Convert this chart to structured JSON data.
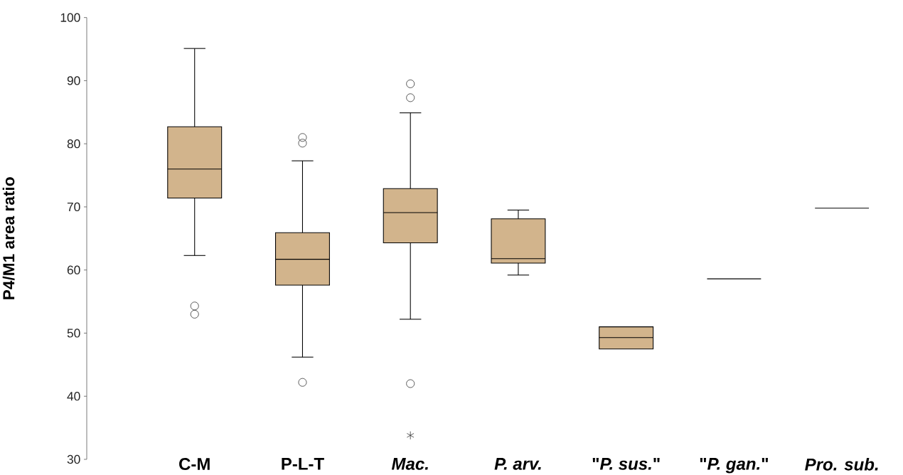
{
  "chart_data": {
    "type": "box",
    "ylabel": "P4/M1 area ratio",
    "categories": [
      "C-M",
      "P-L-T",
      "*Mac.*",
      "*P. arv.*",
      "\"*P. sus.*\"",
      "\"*P. gan.*\"",
      "*Pro. sub.*"
    ],
    "boxes": [
      {
        "low": 62.3,
        "q1": 71.4,
        "median": 76.0,
        "q3": 82.7,
        "high": 95.1,
        "outliers": [
          54.3,
          53.0
        ]
      },
      {
        "low": 46.2,
        "q1": 57.6,
        "median": 61.7,
        "q3": 65.9,
        "high": 77.3,
        "outliers": [
          81.0,
          80.1,
          42.2
        ]
      },
      {
        "low": 52.2,
        "q1": 64.3,
        "median": 69.1,
        "q3": 72.9,
        "high": 84.9,
        "outliers": [
          89.5,
          87.3,
          42.0,
          33.8
        ]
      },
      {
        "low": 59.2,
        "q1": 61.1,
        "median": 61.8,
        "q3": 68.1,
        "high": 69.5
      },
      {
        "low": 47.5,
        "q1": 47.5,
        "median": 49.3,
        "q3": 51.0,
        "high": 51.0
      },
      {
        "low": 58.6,
        "q1": 58.6,
        "median": 58.6,
        "q3": 58.6,
        "high": 58.6
      },
      {
        "low": 69.8,
        "q1": 69.8,
        "median": 69.8,
        "q3": 69.8,
        "high": 69.8
      }
    ],
    "colors": [
      "#d2b48c",
      "#d2b48c",
      "#d2b48c",
      "#d2b48c",
      "#d2b48c",
      "#000000",
      "#000000"
    ],
    "ylim": [
      30,
      100
    ],
    "yticks": [
      30,
      40,
      50,
      60,
      70,
      80,
      90,
      100
    ]
  }
}
